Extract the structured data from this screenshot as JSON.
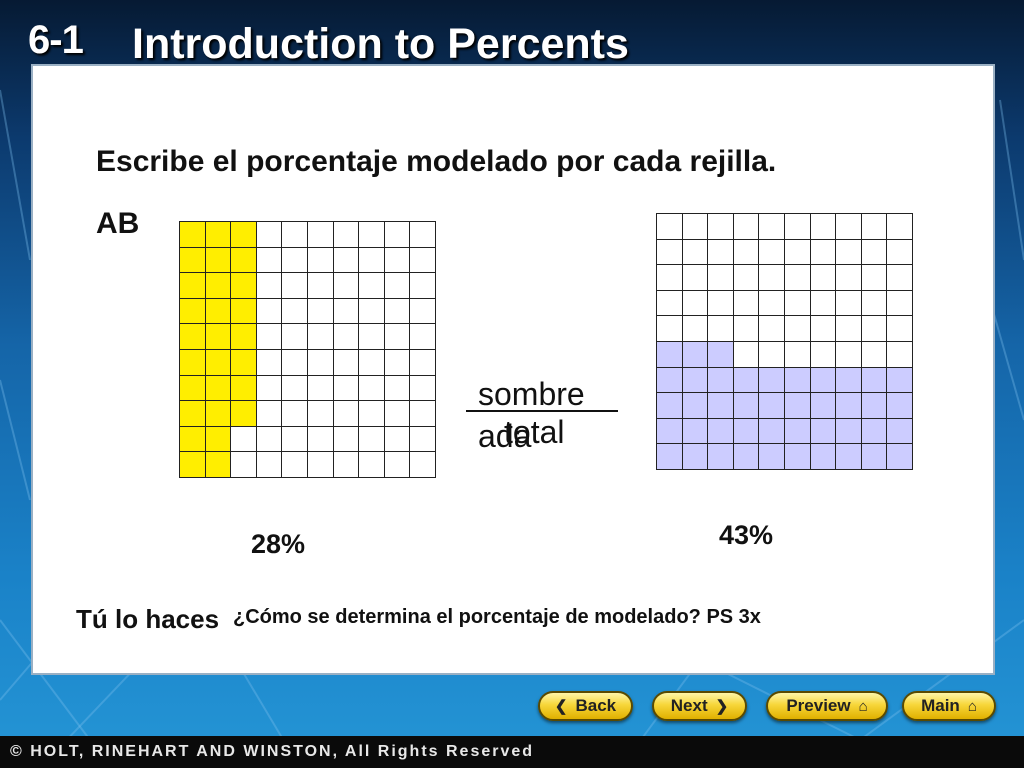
{
  "header": {
    "lesson_number": "6-1",
    "title": "Introduction to Percents"
  },
  "content": {
    "instruction": "Escribe el porcentaje modelado por cada rejilla.",
    "grid_labels": "AB",
    "fraction": {
      "numerator": "sombre",
      "denominator_part1": "ada",
      "denominator_part2": "total"
    },
    "grid_a": {
      "shaded_fraction": 0.28,
      "color": "#ffee00",
      "answer": "28%"
    },
    "grid_b": {
      "shaded_fraction": 0.43,
      "color": "#ccccff",
      "answer": "43%"
    },
    "you_do_label": "Tú lo haces",
    "question": "¿Cómo se determina el porcentaje de modelado? PS 3x"
  },
  "nav": {
    "back_label": "Back",
    "next_label": "Next",
    "preview_label": "Preview",
    "main_label": "Main",
    "back_icon": "chevron-left-icon",
    "next_icon": "chevron-right-icon",
    "home_icon": "home-icon"
  },
  "footer": {
    "copyright": "© HOLT, RINEHART AND WINSTON, All Rights Reserved"
  }
}
